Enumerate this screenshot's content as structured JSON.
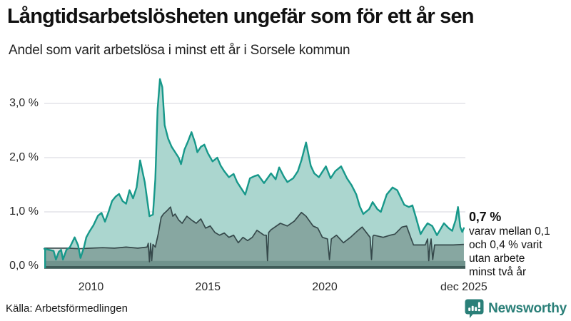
{
  "header": {
    "title": "Långtidsarbetslösheten ungefär som för ett år sen",
    "subtitle": "Andel som varit arbetslösa i minst ett år i Sorsele kommun"
  },
  "chart_data": {
    "type": "area",
    "title": "Långtidsarbetslösheten ungefär som för ett år sen",
    "subtitle": "Andel som varit arbetslösa i minst ett år i Sorsele kommun",
    "unit": "%",
    "x_axis": {
      "tick_labels": [
        "2010",
        "2015",
        "2020",
        "dec 2025"
      ],
      "tick_years": [
        2010,
        2015,
        2020,
        2025.95
      ],
      "range": [
        2008,
        2026
      ],
      "grid": false
    },
    "y_axis": {
      "tick_labels": [
        "0,0 %",
        "1,0 %",
        "2,0 %",
        "3,0 %"
      ],
      "tick_values": [
        0,
        1,
        2,
        3
      ],
      "range": [
        0,
        3.6
      ],
      "grid": true
    },
    "gridline_color": "#E4E4E8",
    "baseline_strip_colors": [
      "#70938D",
      "#3F5B58"
    ],
    "series": [
      {
        "name": "minst ett år",
        "line_color": "#17988A",
        "fill_color": "#ABD6CF",
        "end_value_label": "0,7 %",
        "points": [
          [
            2008.0,
            0.32
          ],
          [
            2008.2,
            0.3
          ],
          [
            2008.4,
            0.28
          ],
          [
            2008.5,
            0.12
          ],
          [
            2008.62,
            0.26
          ],
          [
            2008.72,
            0.3
          ],
          [
            2008.8,
            0.12
          ],
          [
            2008.95,
            0.3
          ],
          [
            2009.1,
            0.35
          ],
          [
            2009.3,
            0.53
          ],
          [
            2009.45,
            0.38
          ],
          [
            2009.55,
            0.15
          ],
          [
            2009.7,
            0.35
          ],
          [
            2009.8,
            0.53
          ],
          [
            2009.95,
            0.65
          ],
          [
            2010.1,
            0.75
          ],
          [
            2010.3,
            0.93
          ],
          [
            2010.45,
            0.98
          ],
          [
            2010.6,
            0.82
          ],
          [
            2010.75,
            1.0
          ],
          [
            2010.9,
            1.2
          ],
          [
            2011.05,
            1.28
          ],
          [
            2011.2,
            1.33
          ],
          [
            2011.35,
            1.2
          ],
          [
            2011.5,
            1.15
          ],
          [
            2011.65,
            1.4
          ],
          [
            2011.8,
            1.25
          ],
          [
            2011.95,
            1.45
          ],
          [
            2012.1,
            1.95
          ],
          [
            2012.3,
            1.55
          ],
          [
            2012.5,
            0.92
          ],
          [
            2012.65,
            0.95
          ],
          [
            2012.75,
            1.6
          ],
          [
            2012.85,
            2.9
          ],
          [
            2012.95,
            3.45
          ],
          [
            2013.05,
            3.3
          ],
          [
            2013.15,
            2.6
          ],
          [
            2013.3,
            2.35
          ],
          [
            2013.45,
            2.2
          ],
          [
            2013.6,
            2.1
          ],
          [
            2013.75,
            2.0
          ],
          [
            2013.85,
            1.88
          ],
          [
            2014.0,
            2.15
          ],
          [
            2014.15,
            2.3
          ],
          [
            2014.3,
            2.47
          ],
          [
            2014.45,
            2.28
          ],
          [
            2014.55,
            2.1
          ],
          [
            2014.7,
            2.2
          ],
          [
            2014.85,
            2.24
          ],
          [
            2015.0,
            2.08
          ],
          [
            2015.2,
            1.93
          ],
          [
            2015.4,
            2.0
          ],
          [
            2015.55,
            1.85
          ],
          [
            2015.7,
            1.75
          ],
          [
            2015.9,
            1.64
          ],
          [
            2016.1,
            1.7
          ],
          [
            2016.25,
            1.55
          ],
          [
            2016.4,
            1.45
          ],
          [
            2016.6,
            1.32
          ],
          [
            2016.8,
            1.62
          ],
          [
            2017.0,
            1.66
          ],
          [
            2017.15,
            1.68
          ],
          [
            2017.4,
            1.53
          ],
          [
            2017.7,
            1.71
          ],
          [
            2017.9,
            1.6
          ],
          [
            2018.05,
            1.82
          ],
          [
            2018.25,
            1.65
          ],
          [
            2018.4,
            1.55
          ],
          [
            2018.65,
            1.62
          ],
          [
            2018.85,
            1.75
          ],
          [
            2019.0,
            1.95
          ],
          [
            2019.2,
            2.28
          ],
          [
            2019.4,
            1.85
          ],
          [
            2019.55,
            1.71
          ],
          [
            2019.75,
            1.64
          ],
          [
            2020.05,
            1.84
          ],
          [
            2020.25,
            1.62
          ],
          [
            2020.45,
            1.75
          ],
          [
            2020.7,
            1.84
          ],
          [
            2020.95,
            1.62
          ],
          [
            2021.15,
            1.49
          ],
          [
            2021.35,
            1.32
          ],
          [
            2021.5,
            1.1
          ],
          [
            2021.65,
            0.96
          ],
          [
            2021.9,
            1.05
          ],
          [
            2022.05,
            1.18
          ],
          [
            2022.25,
            1.05
          ],
          [
            2022.4,
            1.0
          ],
          [
            2022.65,
            1.32
          ],
          [
            2022.9,
            1.45
          ],
          [
            2023.1,
            1.4
          ],
          [
            2023.4,
            1.13
          ],
          [
            2023.6,
            1.09
          ],
          [
            2023.75,
            1.12
          ],
          [
            2023.9,
            0.9
          ],
          [
            2024.1,
            0.59
          ],
          [
            2024.25,
            0.7
          ],
          [
            2024.4,
            0.79
          ],
          [
            2024.6,
            0.74
          ],
          [
            2024.8,
            0.57
          ],
          [
            2024.95,
            0.68
          ],
          [
            2025.1,
            0.79
          ],
          [
            2025.3,
            0.7
          ],
          [
            2025.45,
            0.65
          ],
          [
            2025.6,
            0.85
          ],
          [
            2025.7,
            1.09
          ],
          [
            2025.8,
            0.72
          ],
          [
            2025.88,
            0.63
          ],
          [
            2025.95,
            0.7
          ]
        ]
      },
      {
        "name": "minst två år",
        "line_color": "#36494B",
        "fill_color": "#87A7A1",
        "gap_fill_color": "#DCE3E1",
        "points": [
          [
            2008.0,
            0.33
          ],
          [
            2008.5,
            0.33
          ],
          [
            2009.0,
            0.33
          ],
          [
            2009.5,
            0.32
          ],
          [
            2010.0,
            0.33
          ],
          [
            2010.5,
            0.34
          ],
          [
            2011.0,
            0.33
          ],
          [
            2011.5,
            0.35
          ],
          [
            2012.0,
            0.33
          ],
          [
            2012.4,
            0.35
          ],
          [
            2012.45,
            0.42
          ],
          [
            2012.5,
            0.08
          ],
          [
            2012.55,
            0.42
          ],
          [
            2012.6,
            0.1
          ],
          [
            2012.65,
            0.4
          ],
          [
            2012.75,
            0.35
          ],
          [
            2012.88,
            0.6
          ],
          [
            2013.0,
            0.9
          ],
          [
            2013.1,
            0.96
          ],
          [
            2013.25,
            1.02
          ],
          [
            2013.4,
            1.09
          ],
          [
            2013.5,
            0.92
          ],
          [
            2013.6,
            0.96
          ],
          [
            2013.75,
            0.85
          ],
          [
            2013.9,
            0.79
          ],
          [
            2014.1,
            0.92
          ],
          [
            2014.3,
            0.85
          ],
          [
            2014.5,
            0.79
          ],
          [
            2014.7,
            0.87
          ],
          [
            2014.9,
            0.7
          ],
          [
            2015.1,
            0.74
          ],
          [
            2015.3,
            0.62
          ],
          [
            2015.5,
            0.57
          ],
          [
            2015.7,
            0.61
          ],
          [
            2015.9,
            0.53
          ],
          [
            2016.1,
            0.57
          ],
          [
            2016.3,
            0.43
          ],
          [
            2016.5,
            0.53
          ],
          [
            2016.7,
            0.47
          ],
          [
            2016.9,
            0.53
          ],
          [
            2017.1,
            0.66
          ],
          [
            2017.4,
            0.57
          ],
          [
            2017.5,
            0.57
          ],
          [
            2017.55,
            0.1
          ],
          [
            2017.6,
            0.62
          ],
          [
            2017.7,
            0.67
          ],
          [
            2018.1,
            0.79
          ],
          [
            2018.4,
            0.74
          ],
          [
            2018.7,
            0.83
          ],
          [
            2019.0,
            0.99
          ],
          [
            2019.2,
            0.92
          ],
          [
            2019.5,
            0.74
          ],
          [
            2019.7,
            0.7
          ],
          [
            2019.9,
            0.53
          ],
          [
            2020.12,
            0.5
          ],
          [
            2020.2,
            0.12
          ],
          [
            2020.28,
            0.5
          ],
          [
            2020.5,
            0.57
          ],
          [
            2020.8,
            0.43
          ],
          [
            2021.1,
            0.53
          ],
          [
            2021.4,
            0.65
          ],
          [
            2021.6,
            0.72
          ],
          [
            2021.94,
            0.53
          ],
          [
            2022.0,
            0.12
          ],
          [
            2022.06,
            0.55
          ],
          [
            2022.1,
            0.57
          ],
          [
            2022.5,
            0.53
          ],
          [
            2022.8,
            0.57
          ],
          [
            2023.0,
            0.59
          ],
          [
            2023.3,
            0.72
          ],
          [
            2023.5,
            0.74
          ],
          [
            2023.7,
            0.5
          ],
          [
            2023.8,
            0.39
          ],
          [
            2024.3,
            0.39
          ],
          [
            2024.4,
            0.5
          ],
          [
            2024.45,
            0.1
          ],
          [
            2024.5,
            0.39
          ],
          [
            2024.55,
            0.5
          ],
          [
            2024.62,
            0.12
          ],
          [
            2024.7,
            0.39
          ],
          [
            2025.0,
            0.39
          ],
          [
            2025.5,
            0.39
          ],
          [
            2025.95,
            0.4
          ]
        ]
      }
    ]
  },
  "annotation": {
    "value": "0,7 %",
    "lines": [
      "varav mellan 0,1",
      "och 0,4 % varit",
      "utan arbete",
      "minst två år"
    ]
  },
  "footer": {
    "source": "Källa: Arbetsförmedlingen",
    "brand": "Newsworthy",
    "brand_color": "#2A7F78"
  }
}
